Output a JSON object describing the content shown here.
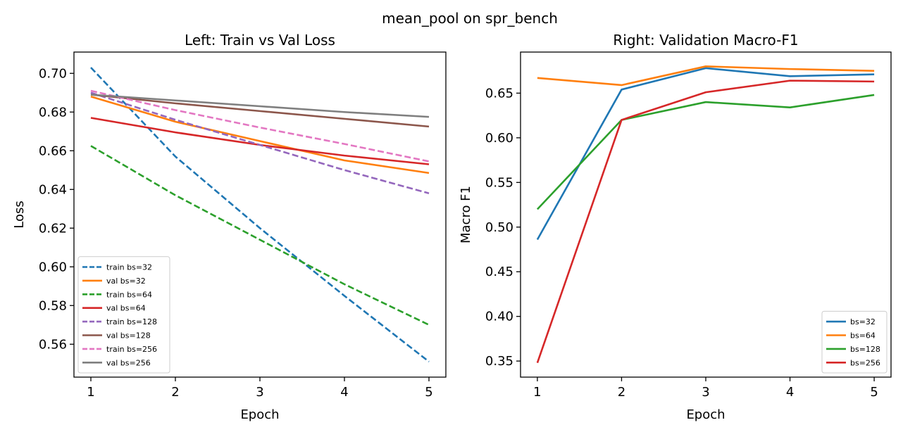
{
  "suptitle": "mean_pool on spr_bench",
  "chart_data": [
    {
      "type": "line",
      "title": "Left: Train vs Val Loss",
      "xlabel": "Epoch",
      "ylabel": "Loss",
      "x": [
        1,
        2,
        3,
        4,
        5
      ],
      "xticks": [
        1,
        2,
        3,
        4,
        5
      ],
      "xlim": [
        0.8,
        5.2
      ],
      "ylim": [
        0.543,
        0.711
      ],
      "yticks": [
        0.56,
        0.58,
        0.6,
        0.62,
        0.64,
        0.66,
        0.68,
        0.7
      ],
      "ytick_labels": [
        "0.56",
        "0.58",
        "0.60",
        "0.62",
        "0.64",
        "0.66",
        "0.68",
        "0.70"
      ],
      "grid": false,
      "legend_position": "lower-left",
      "series": [
        {
          "name": "train bs=32",
          "color": "#1f77b4",
          "style": "dashed",
          "values": [
            0.703,
            0.657,
            0.62,
            0.585,
            0.551
          ]
        },
        {
          "name": "val bs=32",
          "color": "#ff7f0e",
          "style": "solid",
          "values": [
            0.688,
            0.675,
            0.665,
            0.655,
            0.6485
          ]
        },
        {
          "name": "train bs=64",
          "color": "#2ca02c",
          "style": "dashed",
          "values": [
            0.6625,
            0.637,
            0.614,
            0.591,
            0.57
          ]
        },
        {
          "name": "val bs=64",
          "color": "#d62728",
          "style": "solid",
          "values": [
            0.677,
            0.6695,
            0.663,
            0.6575,
            0.653
          ]
        },
        {
          "name": "train bs=128",
          "color": "#9467bd",
          "style": "dashed",
          "values": [
            0.69,
            0.676,
            0.663,
            0.65,
            0.638
          ]
        },
        {
          "name": "val bs=128",
          "color": "#8c564b",
          "style": "solid",
          "values": [
            0.689,
            0.6845,
            0.6805,
            0.6765,
            0.6725
          ]
        },
        {
          "name": "train bs=256",
          "color": "#e377c2",
          "style": "dashed",
          "values": [
            0.691,
            0.681,
            0.672,
            0.6635,
            0.6545
          ]
        },
        {
          "name": "val bs=256",
          "color": "#7f7f7f",
          "style": "solid",
          "values": [
            0.689,
            0.686,
            0.683,
            0.68,
            0.6775
          ]
        }
      ]
    },
    {
      "type": "line",
      "title": "Right: Validation Macro-F1",
      "xlabel": "Epoch",
      "ylabel": "Macro F1",
      "x": [
        1,
        2,
        3,
        4,
        5
      ],
      "xticks": [
        1,
        2,
        3,
        4,
        5
      ],
      "xlim": [
        0.8,
        5.2
      ],
      "ylim": [
        0.332,
        0.696
      ],
      "yticks": [
        0.35,
        0.4,
        0.45,
        0.5,
        0.55,
        0.6,
        0.65
      ],
      "ytick_labels": [
        "0.35",
        "0.40",
        "0.45",
        "0.50",
        "0.55",
        "0.60",
        "0.65"
      ],
      "grid": false,
      "legend_position": "lower-right",
      "series": [
        {
          "name": "bs=32",
          "color": "#1f77b4",
          "style": "solid",
          "values": [
            0.486,
            0.654,
            0.678,
            0.669,
            0.671
          ]
        },
        {
          "name": "bs=64",
          "color": "#ff7f0e",
          "style": "solid",
          "values": [
            0.667,
            0.659,
            0.68,
            0.677,
            0.675
          ]
        },
        {
          "name": "bs=128",
          "color": "#2ca02c",
          "style": "solid",
          "values": [
            0.52,
            0.62,
            0.64,
            0.634,
            0.648
          ]
        },
        {
          "name": "bs=256",
          "color": "#d62728",
          "style": "solid",
          "values": [
            0.348,
            0.62,
            0.651,
            0.664,
            0.663
          ]
        }
      ]
    }
  ]
}
